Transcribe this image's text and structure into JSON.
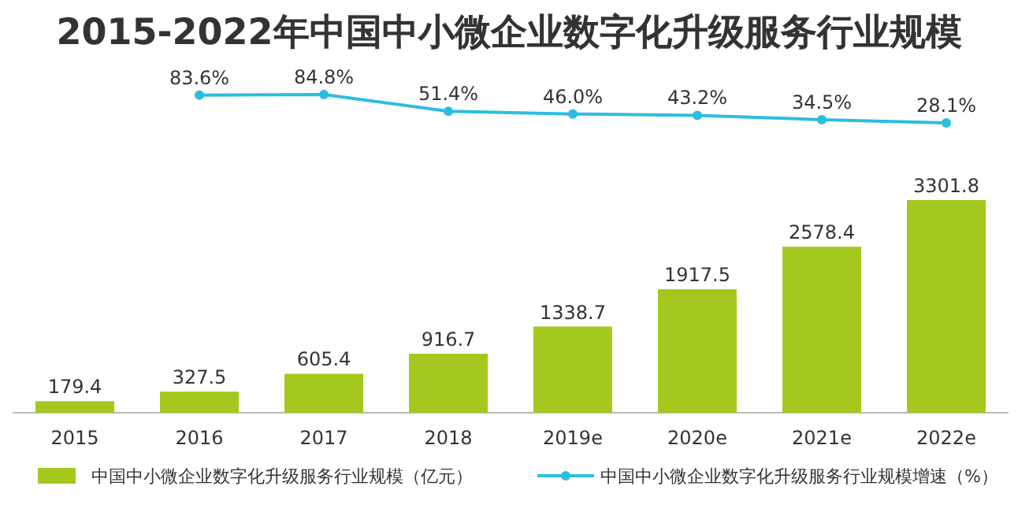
{
  "chart_data": [
    {
      "type": "line",
      "title": "2015-2022年中国中小微企业数字化升级服务行业规模",
      "categories": [
        null,
        null,
        null,
        null,
        null,
        null,
        null,
        null
      ],
      "series": [
        {
          "name": "中国中小微企业数字化升级服务行业规模增速（%）",
          "color": "#2bbde0",
          "marker": "circle",
          "values": [
            null,
            83.6,
            84.8,
            51.4,
            46.0,
            43.2,
            34.5,
            28.1
          ],
          "value_labels": [
            null,
            "83.6%",
            "84.8%",
            "51.4%",
            "46.0%",
            "43.2%",
            "34.5%",
            "28.1%"
          ]
        }
      ],
      "legend": "bottom"
    },
    {
      "type": "bar",
      "categories": [
        "2015",
        "2016",
        "2017",
        "2018",
        "2019e",
        "2020e",
        "2021e",
        "2022e"
      ],
      "series": [
        {
          "name": "中国中小微企业数字化升级服务行业规模（亿元）",
          "color": "#a4c81e",
          "values": [
            179.4,
            327.5,
            605.4,
            916.7,
            1338.7,
            1917.5,
            2578.4,
            3301.8
          ]
        }
      ],
      "data_labels": true,
      "legend": "bottom"
    }
  ]
}
